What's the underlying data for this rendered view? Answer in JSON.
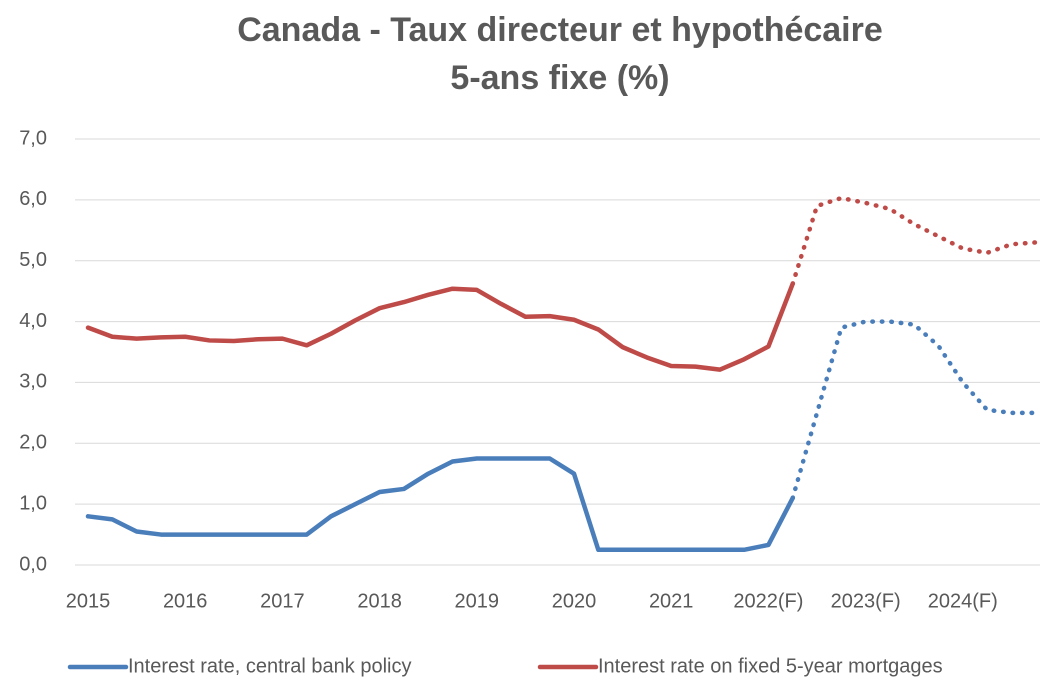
{
  "chart_data": {
    "type": "line",
    "title": [
      "Canada - Taux directeur et hypothécaire",
      "5-ans fixe (%)"
    ],
    "categories": [
      "2015",
      null,
      null,
      null,
      "2016",
      null,
      null,
      null,
      "2017",
      null,
      null,
      null,
      "2018",
      null,
      null,
      null,
      "2019",
      null,
      null,
      null,
      "2020",
      null,
      null,
      null,
      "2021",
      null,
      null,
      null,
      "2022(F)",
      null,
      null,
      null,
      "2023(F)",
      null,
      null,
      null,
      "2024(F)",
      null,
      null,
      null
    ],
    "forecast_start": 29,
    "series": [
      {
        "name": "Interest rate, central bank policy",
        "color": "#4a7ebb",
        "values": [
          0.8,
          0.75,
          0.55,
          0.5,
          0.5,
          0.5,
          0.5,
          0.5,
          0.5,
          0.5,
          0.8,
          1.0,
          1.2,
          1.25,
          1.5,
          1.7,
          1.75,
          1.75,
          1.75,
          1.75,
          1.5,
          0.25,
          0.25,
          0.25,
          0.25,
          0.25,
          0.25,
          0.25,
          0.33,
          1.1,
          2.5,
          3.9,
          4.0,
          4.0,
          3.95,
          3.6,
          3.0,
          2.55,
          2.5,
          2.5
        ]
      },
      {
        "name": "Interest rate on fixed 5-year mortgages",
        "color": "#be4b48",
        "values": [
          3.9,
          3.75,
          3.72,
          3.74,
          3.75,
          3.69,
          3.68,
          3.71,
          3.72,
          3.61,
          3.8,
          4.02,
          4.22,
          4.32,
          4.44,
          4.54,
          4.52,
          4.29,
          4.08,
          4.09,
          4.03,
          3.87,
          3.58,
          3.41,
          3.27,
          3.26,
          3.21,
          3.38,
          3.59,
          4.62,
          5.9,
          6.03,
          5.95,
          5.85,
          5.6,
          5.4,
          5.2,
          5.13,
          5.27,
          5.3
        ]
      }
    ],
    "ylim": [
      0,
      7
    ],
    "yticks": [
      {
        "value": 0,
        "label": "0,0"
      },
      {
        "value": 1,
        "label": "1,0"
      },
      {
        "value": 2,
        "label": "2,0"
      },
      {
        "value": 3,
        "label": "3,0"
      },
      {
        "value": 4,
        "label": "4,0"
      },
      {
        "value": 5,
        "label": "5,0"
      },
      {
        "value": 6,
        "label": "6,0"
      },
      {
        "value": 7,
        "label": "7,0"
      }
    ],
    "grid": true,
    "legend": "bottom"
  }
}
